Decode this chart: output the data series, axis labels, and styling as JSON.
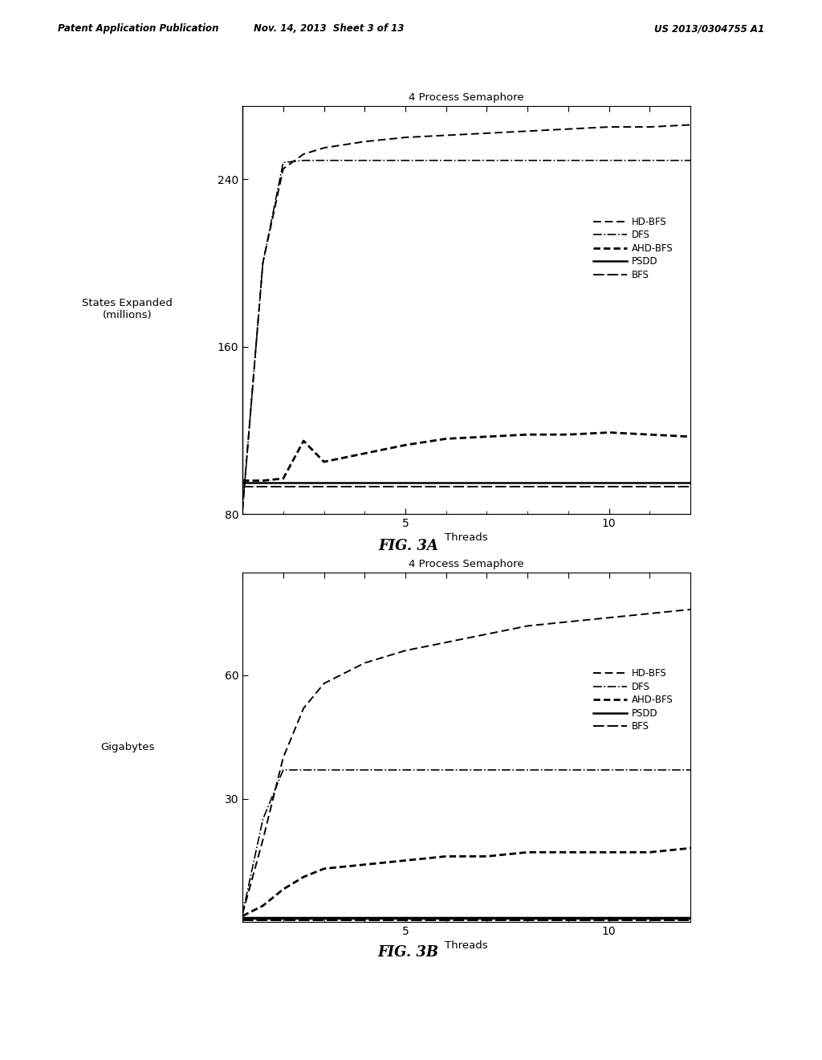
{
  "fig3a": {
    "title": "4 Process Semaphore",
    "xlabel": "Threads",
    "ylabel": "States Expanded\n(millions)",
    "ylim": [
      80,
      275
    ],
    "yticks": [
      80,
      160,
      240
    ],
    "xlim": [
      1,
      12
    ],
    "xticks": [
      5,
      10
    ],
    "threads": [
      1,
      1.5,
      2,
      2.5,
      3,
      4,
      5,
      6,
      7,
      8,
      9,
      10,
      11,
      12
    ],
    "hd_bfs": [
      82,
      200,
      245,
      252,
      255,
      258,
      260,
      261,
      262,
      263,
      264,
      265,
      265,
      266
    ],
    "dfs": [
      82,
      200,
      248,
      249,
      249,
      249,
      249,
      249,
      249,
      249,
      249,
      249,
      249,
      249
    ],
    "ahd_bfs": [
      96,
      96,
      97,
      115,
      105,
      109,
      113,
      116,
      117,
      118,
      118,
      119,
      118,
      117
    ],
    "psdd": [
      95,
      95,
      95,
      95,
      95,
      95,
      95,
      95,
      95,
      95,
      95,
      95,
      95,
      95
    ],
    "bfs": [
      93,
      93,
      93,
      93,
      93,
      93,
      93,
      93,
      93,
      93,
      93,
      93,
      93,
      93
    ]
  },
  "fig3b": {
    "title": "4 Process Semaphore",
    "xlabel": "Threads",
    "ylabel": "Gigabytes",
    "ylim": [
      0,
      85
    ],
    "yticks": [
      30,
      60
    ],
    "xlim": [
      1,
      12
    ],
    "xticks": [
      5,
      10
    ],
    "threads": [
      1,
      1.5,
      2,
      2.5,
      3,
      4,
      5,
      6,
      7,
      8,
      9,
      10,
      11,
      12
    ],
    "hd_bfs": [
      2,
      20,
      40,
      52,
      58,
      63,
      66,
      68,
      70,
      72,
      73,
      74,
      75,
      76
    ],
    "dfs": [
      2,
      25,
      37,
      37,
      37,
      37,
      37,
      37,
      37,
      37,
      37,
      37,
      37,
      37
    ],
    "ahd_bfs": [
      1.5,
      4,
      8,
      11,
      13,
      14,
      15,
      16,
      16,
      17,
      17,
      17,
      17,
      18
    ],
    "psdd": [
      1.0,
      1.0,
      1.0,
      1.0,
      1.0,
      1.0,
      1.0,
      1.0,
      1.0,
      1.0,
      1.0,
      1.0,
      1.0,
      1.0
    ],
    "bfs": [
      0.5,
      0.5,
      0.5,
      0.5,
      0.5,
      0.5,
      0.5,
      0.5,
      0.5,
      0.5,
      0.5,
      0.5,
      0.5,
      0.5
    ]
  },
  "fig3a_label": "FIG. 3A",
  "fig3b_label": "FIG. 3B",
  "header_left": "Patent Application Publication",
  "header_mid": "Nov. 14, 2013  Sheet 3 of 13",
  "header_right": "US 2013/0304755 A1"
}
